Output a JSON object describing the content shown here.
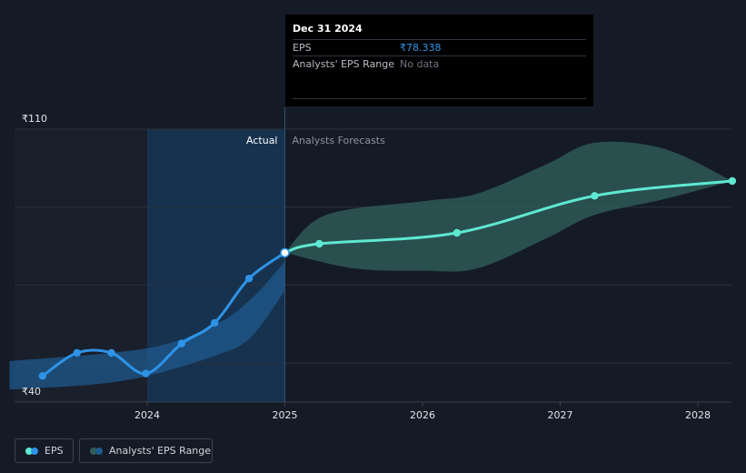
{
  "tooltip": {
    "date": "Dec 31 2024",
    "rows": [
      {
        "label": "EPS",
        "value": "₹78.338"
      },
      {
        "label": "Analysts' EPS Range",
        "value": "No data"
      }
    ]
  },
  "legend": {
    "eps_label": "EPS",
    "range_label": "Analysts' EPS Range"
  },
  "colors": {
    "background": "#151b26",
    "eps_actual": "#2e93e6",
    "eps_forecast": "#5ee8d2",
    "range_actual": "#1f5a8c",
    "range_forecast": "#2f5d5a",
    "grid": "#2b313d"
  },
  "chart_data": {
    "type": "line",
    "y_axis": {
      "min": 40,
      "max": 110,
      "tick_labels": [
        "₹110",
        "₹40"
      ],
      "gridlines": [
        50,
        70,
        90,
        110
      ]
    },
    "x_axis": {
      "tick_labels": [
        "2024",
        "2025",
        "2026",
        "2027",
        "2028"
      ],
      "tick_values": [
        2024,
        2025,
        2026,
        2027,
        2028
      ]
    },
    "divider_x": 2025.0,
    "labels": {
      "actual": "Actual",
      "forecast": "Analysts Forecasts"
    },
    "series": [
      {
        "name": "EPS",
        "segment": "actual",
        "points": [
          [
            2023.24,
            46.7
          ],
          [
            2023.49,
            52.6
          ],
          [
            2023.74,
            52.6
          ],
          [
            2023.99,
            47.3
          ],
          [
            2024.25,
            55.0
          ],
          [
            2024.49,
            60.3
          ],
          [
            2024.74,
            71.7
          ],
          [
            2025.0,
            78.3
          ]
        ]
      },
      {
        "name": "EPS",
        "segment": "forecast",
        "points": [
          [
            2025.0,
            78.3
          ],
          [
            2025.25,
            80.6
          ],
          [
            2026.25,
            83.4
          ],
          [
            2027.25,
            92.9
          ],
          [
            2028.25,
            96.7
          ]
        ]
      }
    ],
    "ranges": [
      {
        "name": "Analysts' EPS Range",
        "segment": "actual",
        "upper": [
          [
            2023.0,
            50.5
          ],
          [
            2024.0,
            53.8
          ],
          [
            2024.5,
            60.0
          ],
          [
            2024.75,
            66.3
          ],
          [
            2025.0,
            76.0
          ]
        ],
        "lower": [
          [
            2023.0,
            43.2
          ],
          [
            2023.6,
            44.5
          ],
          [
            2024.0,
            46.7
          ],
          [
            2024.5,
            52.0
          ],
          [
            2024.75,
            56.5
          ],
          [
            2025.0,
            68.6
          ]
        ]
      },
      {
        "name": "Analysts' EPS Range",
        "segment": "forecast",
        "upper": [
          [
            2025.0,
            78.3
          ],
          [
            2025.3,
            88.0
          ],
          [
            2026.0,
            91.5
          ],
          [
            2026.4,
            93.5
          ],
          [
            2026.9,
            101.0
          ],
          [
            2027.25,
            106.5
          ],
          [
            2027.75,
            105.0
          ],
          [
            2028.25,
            96.7
          ]
        ],
        "lower": [
          [
            2025.0,
            78.3
          ],
          [
            2025.5,
            74.3
          ],
          [
            2026.0,
            73.7
          ],
          [
            2026.4,
            74.3
          ],
          [
            2026.9,
            82.0
          ],
          [
            2027.25,
            88.0
          ],
          [
            2027.75,
            92.0
          ],
          [
            2028.25,
            96.7
          ]
        ]
      }
    ]
  }
}
